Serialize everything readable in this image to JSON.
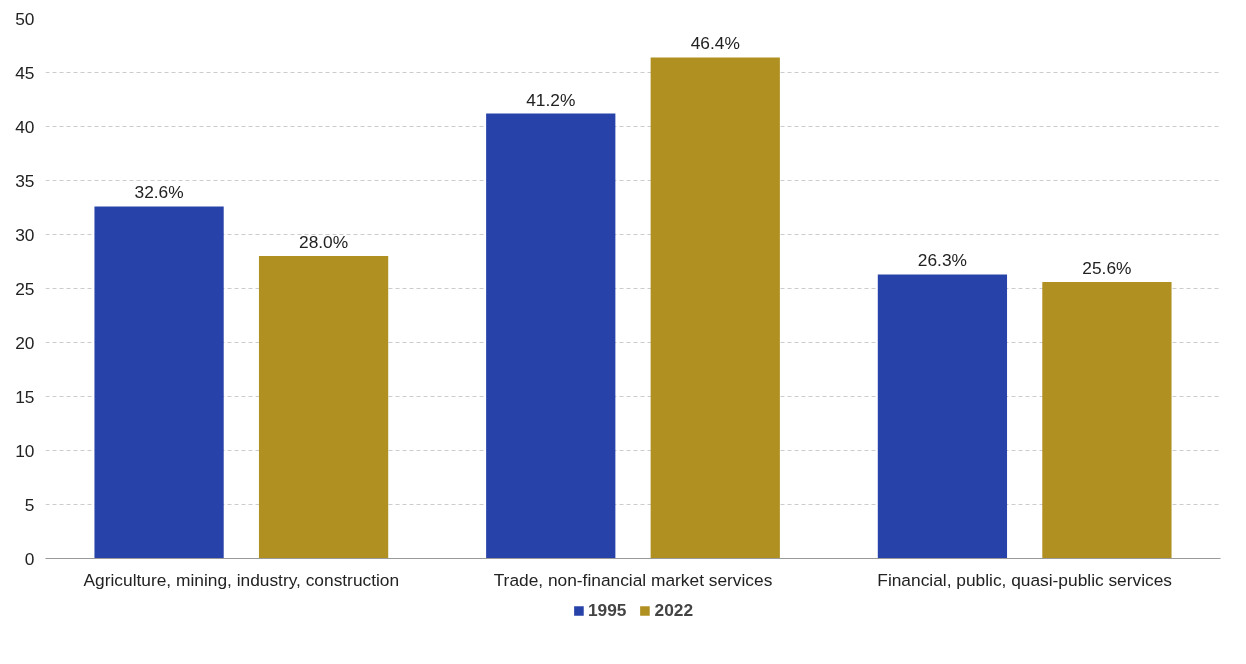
{
  "chart_data": {
    "type": "bar",
    "categories": [
      "Agriculture, mining, industry, construction",
      "Trade, non-financial market services",
      "Financial, public, quasi-public services"
    ],
    "series": [
      {
        "name": "1995",
        "color": "#2742a8",
        "values": [
          32.6,
          41.2,
          26.3
        ],
        "value_labels": [
          "32.6%",
          "41.2%",
          "26.3%"
        ]
      },
      {
        "name": "2022",
        "color": "#b09020",
        "values": [
          28.0,
          46.4,
          25.6
        ],
        "value_labels": [
          "28.0%",
          "46.4%",
          "25.6%"
        ]
      }
    ],
    "ylim": [
      0,
      50
    ],
    "yticks": [
      0,
      5,
      10,
      15,
      20,
      25,
      30,
      35,
      40,
      45,
      50
    ],
    "grid": "y",
    "legend": "bottom"
  }
}
